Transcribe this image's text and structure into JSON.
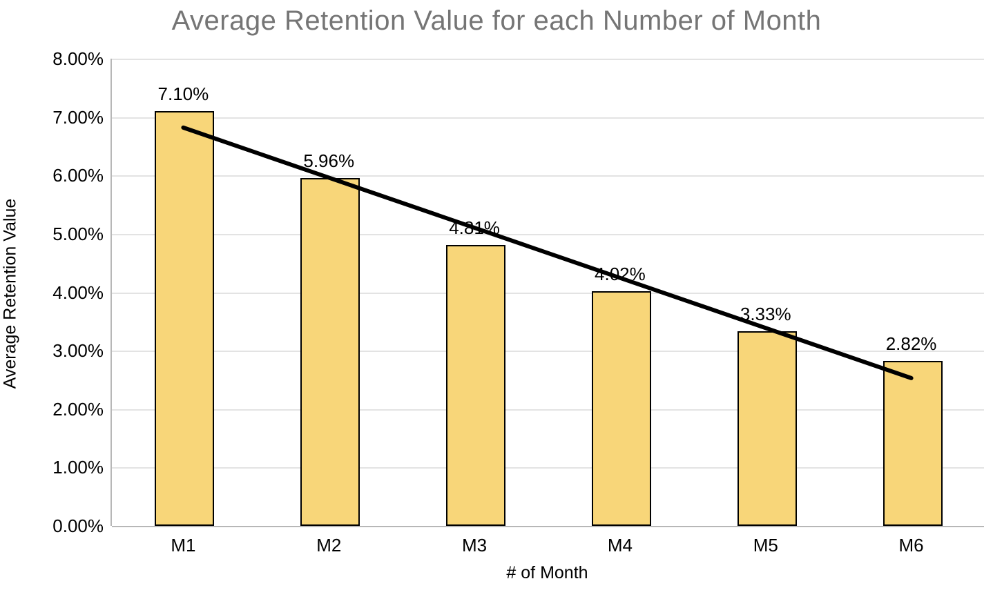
{
  "title": "Average Retention Value for each Number of Month",
  "chart_data": {
    "type": "bar",
    "title": "Average Retention Value for each Number of Month",
    "categories": [
      "M1",
      "M2",
      "M3",
      "M4",
      "M5",
      "M6"
    ],
    "values": [
      7.1,
      5.96,
      4.81,
      4.02,
      3.33,
      2.82
    ],
    "data_labels": [
      "7.10%",
      "5.96%",
      "4.81%",
      "4.02%",
      "3.33%",
      "2.82%"
    ],
    "xlabel": "# of Month",
    "ylabel": "Average Retention Value",
    "ylim": [
      0,
      8
    ],
    "ytick_step": 1,
    "ytick_labels": [
      "0.00%",
      "1.00%",
      "2.00%",
      "3.00%",
      "4.00%",
      "5.00%",
      "6.00%",
      "7.00%",
      "8.00%"
    ],
    "grid": true,
    "legend_position": "none",
    "trendline": {
      "type": "linear",
      "start_category_index": 0,
      "start_value": 6.82,
      "end_category_index": 5,
      "end_value": 2.53,
      "color": "#000000",
      "width": 6
    },
    "colors": {
      "bar_fill": "#f8d679",
      "bar_border": "#000000",
      "title_text": "#757575",
      "axis_text": "#000000",
      "gridline": "#e3e3e3",
      "axis_line": "#b7b7b7",
      "background": "#ffffff"
    }
  }
}
